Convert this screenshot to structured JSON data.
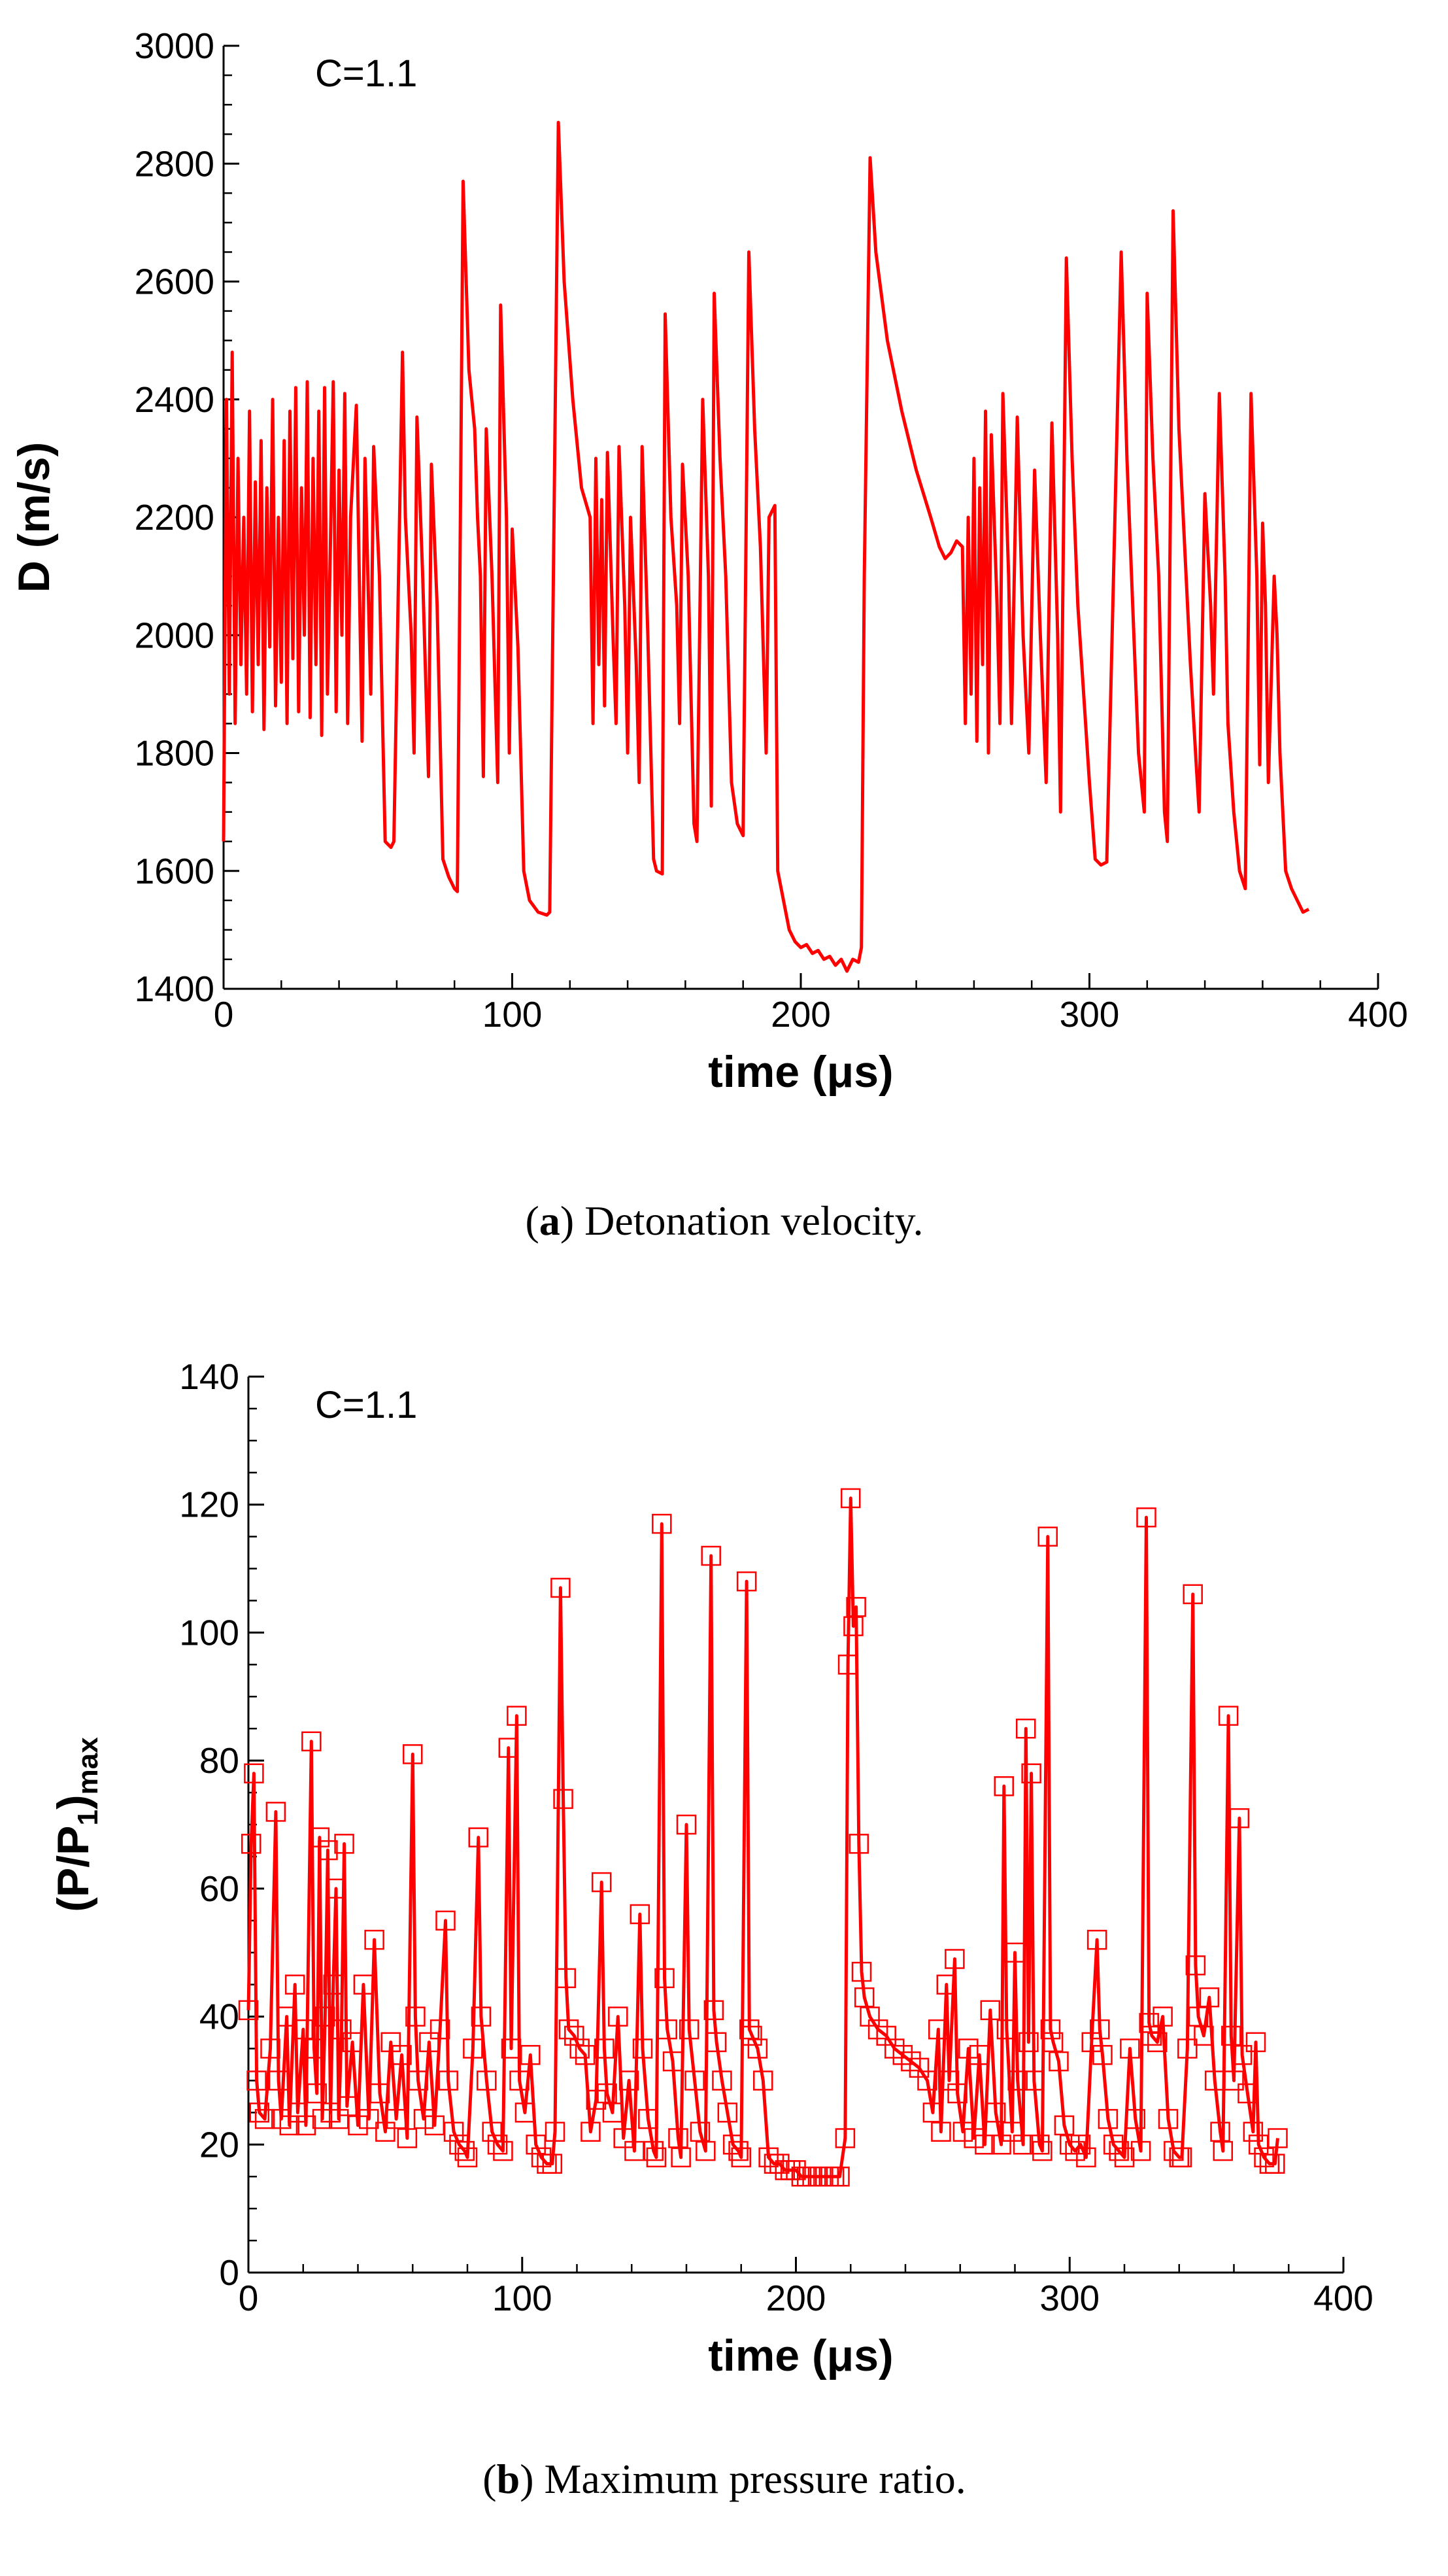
{
  "chart_data": [
    {
      "type": "line",
      "color": "#ff0000",
      "annotation": "C=1.1",
      "ylabel": "D (m/s)",
      "xlabel": "time (μs)",
      "caption": [
        "(",
        "a",
        ") Detonation velocity."
      ],
      "xlim": [
        0,
        400
      ],
      "xticks": [
        0,
        100,
        200,
        300,
        400
      ],
      "xminorticks": [
        20,
        40,
        60,
        80,
        120,
        140,
        160,
        180,
        220,
        240,
        260,
        280,
        320,
        340,
        360,
        380
      ],
      "ylim": [
        1400,
        3000
      ],
      "yticks": [
        1400,
        1600,
        1800,
        2000,
        2200,
        2400,
        2600,
        2800,
        3000
      ],
      "yminorticks": [
        1450,
        1500,
        1550,
        1650,
        1700,
        1750,
        1850,
        1900,
        1950,
        2050,
        2100,
        2150,
        2250,
        2300,
        2350,
        2450,
        2500,
        2550,
        2650,
        2700,
        2750,
        2850,
        2900,
        2950
      ],
      "x": [
        0,
        1,
        2,
        3,
        4,
        5,
        6,
        7,
        8,
        9,
        10,
        11,
        12,
        13,
        14,
        15,
        16,
        17,
        18,
        19,
        20,
        21,
        22,
        23,
        24,
        25,
        26,
        27,
        28,
        29,
        30,
        31,
        32,
        33,
        34,
        35,
        36,
        37,
        38,
        39,
        40,
        41,
        42,
        43,
        44,
        46,
        48,
        49,
        51,
        52,
        54,
        56,
        58,
        59,
        62,
        63,
        65,
        66,
        67,
        69,
        71,
        72,
        74,
        76,
        78,
        80,
        81,
        83,
        85,
        87,
        88,
        89,
        90,
        91,
        93,
        95,
        96,
        98,
        99,
        100,
        102,
        104,
        106,
        109,
        112,
        113,
        116,
        118,
        121,
        124,
        127,
        128,
        129,
        130,
        131,
        132,
        133,
        135,
        136,
        137,
        139,
        140,
        141,
        143,
        144,
        145,
        147,
        149,
        150,
        152,
        153,
        155,
        157,
        158,
        159,
        161,
        163,
        164,
        166,
        168,
        169,
        170,
        172,
        174,
        176,
        178,
        180,
        182,
        184,
        186,
        188,
        189,
        191,
        192,
        194,
        196,
        198,
        200,
        202,
        204,
        206,
        208,
        210,
        212,
        214,
        216,
        218,
        220,
        221,
        222,
        224,
        226,
        230,
        235,
        240,
        245,
        248,
        250,
        252,
        254,
        256,
        257,
        258,
        259,
        260,
        261,
        262,
        263,
        264,
        265,
        266,
        268,
        269,
        270,
        272,
        273,
        275,
        277,
        279,
        281,
        283,
        285,
        287,
        289,
        290,
        292,
        294,
        296,
        298,
        300,
        302,
        304,
        306,
        311,
        313,
        315,
        317,
        319,
        320,
        322,
        324,
        326,
        327,
        329,
        331,
        333,
        335,
        337,
        338,
        340,
        342,
        343,
        345,
        347,
        348,
        350,
        352,
        354,
        356,
        358,
        359,
        360,
        361,
        362,
        364,
        365,
        366,
        368,
        370,
        372,
        374,
        376
      ],
      "values": [
        1650,
        2400,
        1900,
        2480,
        1850,
        2300,
        1950,
        2200,
        1900,
        2380,
        1870,
        2260,
        1950,
        2330,
        1840,
        2250,
        1980,
        2400,
        1880,
        2200,
        1920,
        2330,
        1850,
        2380,
        1960,
        2420,
        1870,
        2250,
        2000,
        2430,
        1860,
        2300,
        1950,
        2380,
        1830,
        2420,
        1900,
        2150,
        2430,
        1870,
        2280,
        2000,
        2410,
        1850,
        2200,
        2390,
        1820,
        2300,
        1900,
        2320,
        2100,
        1650,
        1640,
        1650,
        2480,
        2200,
        2000,
        1800,
        2370,
        2100,
        1760,
        2290,
        2050,
        1620,
        1590,
        1570,
        1565,
        2770,
        2450,
        2350,
        2200,
        2100,
        1760,
        2350,
        2100,
        1750,
        2560,
        2200,
        1800,
        2180,
        1980,
        1600,
        1550,
        1530,
        1525,
        1530,
        2870,
        2600,
        2400,
        2250,
        2200,
        1850,
        2300,
        1950,
        2230,
        1880,
        2310,
        1990,
        1850,
        2320,
        2050,
        1800,
        2200,
        1950,
        1750,
        2320,
        2000,
        1620,
        1600,
        1595,
        2545,
        2200,
        2050,
        1850,
        2290,
        2100,
        1680,
        1650,
        2400,
        2100,
        1710,
        2580,
        2300,
        2100,
        1750,
        1680,
        1660,
        2650,
        2350,
        2150,
        1800,
        2200,
        2220,
        1600,
        1550,
        1500,
        1480,
        1470,
        1475,
        1460,
        1465,
        1450,
        1455,
        1440,
        1450,
        1430,
        1450,
        1445,
        1470,
        2100,
        2810,
        2650,
        2500,
        2380,
        2280,
        2200,
        2150,
        2130,
        2140,
        2160,
        2150,
        1850,
        2200,
        1900,
        2300,
        1820,
        2250,
        1950,
        2380,
        1800,
        2340,
        2050,
        1850,
        2410,
        2100,
        1850,
        2370,
        2000,
        1800,
        2280,
        2000,
        1750,
        2360,
        2000,
        1700,
        2640,
        2300,
        2050,
        1900,
        1750,
        1620,
        1610,
        1615,
        2650,
        2300,
        2050,
        1800,
        1700,
        2580,
        2300,
        2100,
        1700,
        1650,
        2720,
        2350,
        2150,
        1950,
        1780,
        1700,
        2240,
        2050,
        1900,
        2410,
        2100,
        1850,
        1700,
        1600,
        1570,
        2410,
        2100,
        1780,
        2190,
        2050,
        1750,
        2100,
        2000,
        1800,
        1600,
        1570,
        1550,
        1530,
        1535
      ]
    },
    {
      "type": "line",
      "color": "#ff0000",
      "marker": "square",
      "annotation": "C=1.1",
      "ylabel": [
        "(P/P",
        "1",
        ")",
        "max"
      ],
      "xlabel": "time (μs)",
      "caption": [
        "(",
        "b",
        ") Maximum pressure ratio."
      ],
      "xlim": [
        0,
        400
      ],
      "xticks": [
        0,
        100,
        200,
        300,
        400
      ],
      "xminorticks": [
        20,
        40,
        60,
        80,
        120,
        140,
        160,
        180,
        220,
        240,
        260,
        280,
        320,
        340,
        360,
        380
      ],
      "ylim": [
        0,
        140
      ],
      "yticks": [
        0,
        20,
        40,
        60,
        80,
        100,
        120,
        140
      ],
      "yminorticks": [
        5,
        10,
        15,
        25,
        30,
        35,
        45,
        50,
        55,
        65,
        70,
        75,
        85,
        90,
        95,
        105,
        110,
        115,
        125,
        130,
        135
      ],
      "x": [
        0,
        1,
        2,
        3,
        4,
        6,
        8,
        10,
        11,
        12,
        14,
        15,
        17,
        18,
        20,
        21,
        23,
        24,
        25,
        26,
        27,
        28,
        29,
        30,
        31,
        32,
        33,
        34,
        35,
        36,
        38,
        40,
        42,
        44,
        46,
        48,
        50,
        52,
        54,
        56,
        58,
        60,
        61,
        62,
        64,
        66,
        68,
        70,
        72,
        73,
        75,
        77,
        79,
        80,
        82,
        84,
        85,
        87,
        89,
        91,
        93,
        95,
        96,
        98,
        99,
        101,
        103,
        105,
        107,
        109,
        111,
        112,
        114,
        115,
        116,
        117,
        119,
        121,
        123,
        125,
        127,
        129,
        130,
        131,
        133,
        135,
        137,
        139,
        141,
        143,
        144,
        146,
        148,
        149,
        151,
        152,
        153,
        155,
        157,
        158,
        160,
        161,
        163,
        165,
        167,
        169,
        170,
        171,
        173,
        175,
        177,
        179,
        180,
        182,
        183,
        184,
        186,
        188,
        190,
        192,
        194,
        196,
        198,
        200,
        202,
        204,
        206,
        208,
        210,
        212,
        214,
        216,
        218,
        219,
        220,
        221,
        222,
        223,
        224,
        225,
        227,
        230,
        233,
        236,
        239,
        242,
        245,
        248,
        250,
        252,
        253,
        255,
        256,
        258,
        259,
        261,
        263,
        265,
        267,
        269,
        271,
        273,
        275,
        276,
        277,
        279,
        280,
        281,
        283,
        284,
        285,
        286,
        287,
        289,
        290,
        292,
        293,
        294,
        296,
        298,
        300,
        302,
        304,
        306,
        308,
        310,
        311,
        312,
        314,
        316,
        318,
        320,
        322,
        324,
        326,
        328,
        329,
        330,
        332,
        334,
        336,
        338,
        340,
        341,
        343,
        345,
        346,
        347,
        349,
        351,
        353,
        355,
        356,
        358,
        359,
        360,
        362,
        363,
        365,
        367,
        368,
        369,
        371,
        373,
        375,
        376
      ],
      "values": [
        41,
        67,
        78,
        30,
        25,
        24,
        35,
        72,
        30,
        24,
        40,
        23,
        45,
        25,
        38,
        23,
        83,
        35,
        28,
        68,
        24,
        40,
        66,
        25,
        45,
        60,
        24,
        38,
        67,
        26,
        36,
        23,
        45,
        24,
        52,
        28,
        22,
        36,
        24,
        34,
        21,
        81,
        40,
        30,
        24,
        36,
        23,
        38,
        55,
        30,
        22,
        20,
        19,
        18,
        35,
        68,
        40,
        30,
        22,
        20,
        19,
        82,
        35,
        87,
        30,
        25,
        34,
        20,
        18,
        17,
        17,
        22,
        107,
        74,
        46,
        38,
        37,
        35,
        34,
        22,
        27,
        61,
        35,
        28,
        25,
        40,
        21,
        30,
        19,
        56,
        35,
        24,
        19,
        18,
        117,
        46,
        38,
        33,
        21,
        18,
        70,
        38,
        30,
        22,
        19,
        112,
        41,
        36,
        30,
        25,
        20,
        19,
        18,
        108,
        38,
        37,
        35,
        30,
        18,
        17,
        17,
        16,
        16,
        16,
        15,
        15,
        15,
        15,
        15,
        15,
        15,
        15,
        21,
        95,
        121,
        101,
        104,
        67,
        47,
        43,
        40,
        38,
        37,
        35,
        34,
        33,
        32,
        30,
        25,
        38,
        22,
        45,
        30,
        49,
        28,
        22,
        35,
        21,
        34,
        20,
        41,
        25,
        20,
        76,
        38,
        22,
        50,
        30,
        20,
        85,
        36,
        78,
        30,
        20,
        19,
        115,
        38,
        36,
        33,
        23,
        20,
        19,
        20,
        18,
        36,
        52,
        38,
        34,
        24,
        20,
        19,
        18,
        35,
        24,
        19,
        118,
        39,
        37,
        36,
        40,
        24,
        19,
        18,
        18,
        35,
        106,
        48,
        40,
        37,
        43,
        30,
        22,
        19,
        87,
        37,
        30,
        71,
        34,
        28,
        22,
        36,
        20,
        18,
        17,
        17,
        21
      ]
    }
  ]
}
